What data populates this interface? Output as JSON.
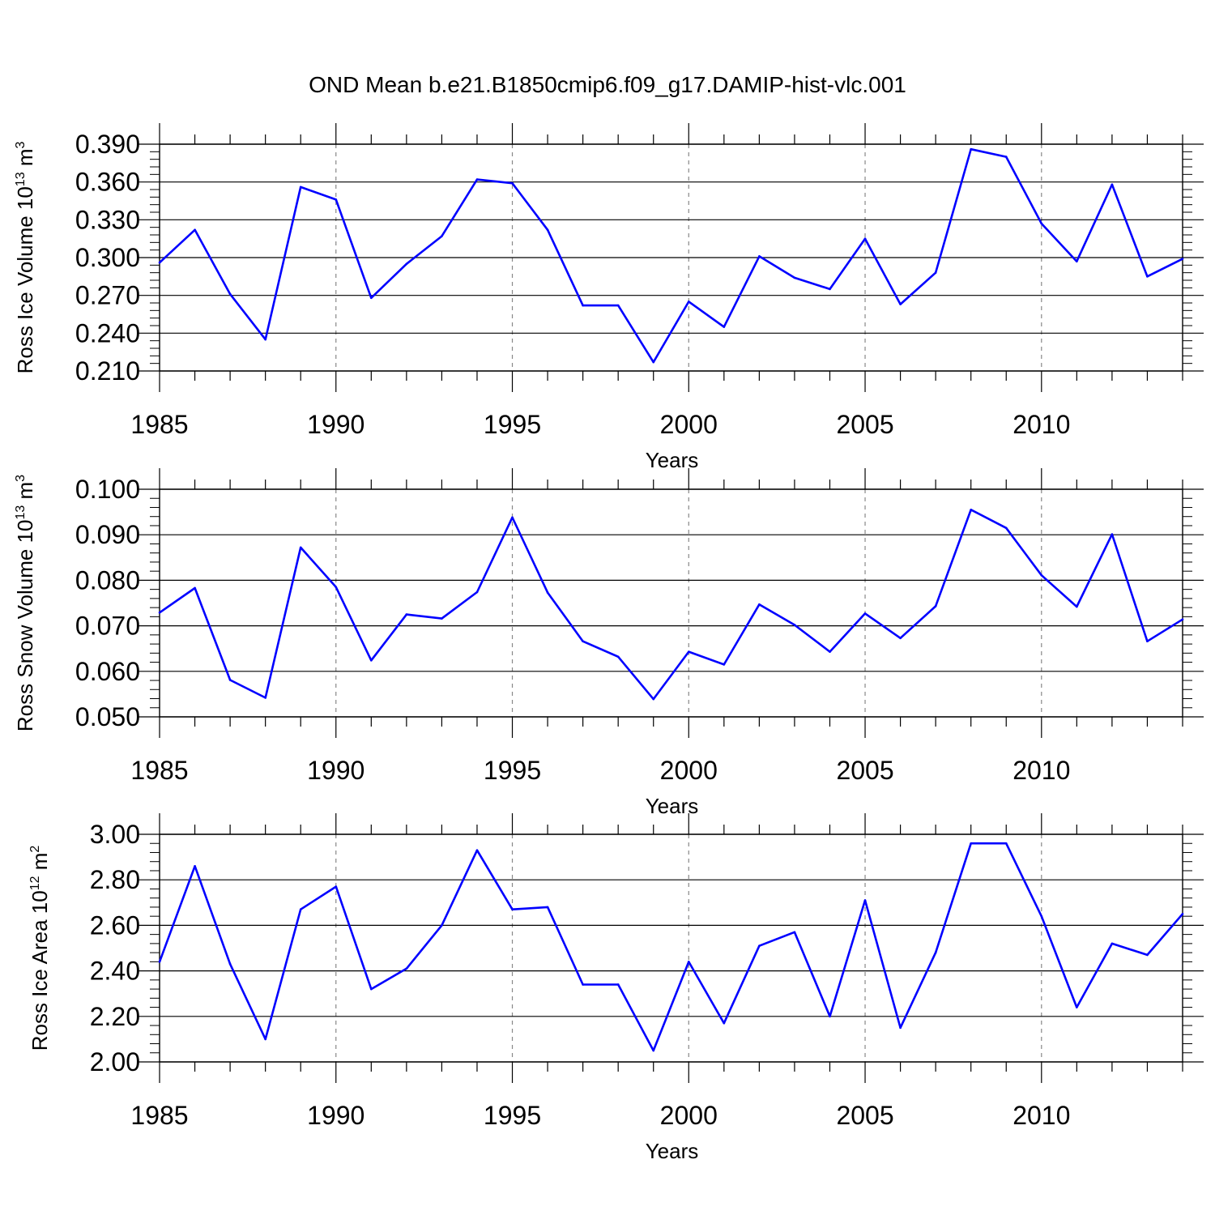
{
  "title": "OND Mean b.e21.B1850cmip6.f09_g17.DAMIP-hist-vlc.001",
  "chart_data": [
    {
      "type": "line",
      "ylabel": {
        "text": "Ross Ice Volume 10",
        "exp": "13",
        "unit": " m",
        "unit_exp": "3"
      },
      "xlabel": "Years",
      "xlim": [
        1985,
        2014
      ],
      "ylim": [
        0.21,
        0.39
      ],
      "yticks": [
        "0.210",
        "0.240",
        "0.270",
        "0.300",
        "0.330",
        "0.360",
        "0.390"
      ],
      "xticks": [
        "1985",
        "1990",
        "1995",
        "2000",
        "2005",
        "2010"
      ],
      "color": "#0000ff",
      "x": [
        1985,
        1986,
        1987,
        1988,
        1989,
        1990,
        1991,
        1992,
        1993,
        1994,
        1995,
        1996,
        1997,
        1998,
        1999,
        2000,
        2001,
        2002,
        2003,
        2004,
        2005,
        2006,
        2007,
        2008,
        2009,
        2010,
        2011,
        2012,
        2013,
        2014
      ],
      "values": [
        0.296,
        0.322,
        0.271,
        0.235,
        0.356,
        0.346,
        0.268,
        0.295,
        0.317,
        0.362,
        0.359,
        0.322,
        0.262,
        0.262,
        0.217,
        0.265,
        0.245,
        0.301,
        0.284,
        0.275,
        0.315,
        0.263,
        0.288,
        0.386,
        0.38,
        0.327,
        0.297,
        0.358,
        0.285,
        0.299
      ]
    },
    {
      "type": "line",
      "ylabel": {
        "text": "Ross Snow Volume 10",
        "exp": "13",
        "unit": " m",
        "unit_exp": "3"
      },
      "xlabel": "Years",
      "xlim": [
        1985,
        2014
      ],
      "ylim": [
        0.05,
        0.1
      ],
      "yticks": [
        "0.050",
        "0.060",
        "0.070",
        "0.080",
        "0.090",
        "0.100"
      ],
      "xticks": [
        "1985",
        "1990",
        "1995",
        "2000",
        "2005",
        "2010"
      ],
      "color": "#0000ff",
      "x": [
        1985,
        1986,
        1987,
        1988,
        1989,
        1990,
        1991,
        1992,
        1993,
        1994,
        1995,
        1996,
        1997,
        1998,
        1999,
        2000,
        2001,
        2002,
        2003,
        2004,
        2005,
        2006,
        2007,
        2008,
        2009,
        2010,
        2011,
        2012,
        2013,
        2014
      ],
      "values": [
        0.0729,
        0.0783,
        0.0581,
        0.0542,
        0.0872,
        0.0785,
        0.0624,
        0.0725,
        0.0716,
        0.0774,
        0.0938,
        0.0773,
        0.0666,
        0.0632,
        0.0539,
        0.0643,
        0.0615,
        0.0747,
        0.0702,
        0.0643,
        0.0727,
        0.0673,
        0.0743,
        0.0955,
        0.0915,
        0.0811,
        0.0742,
        0.0901,
        0.0666,
        0.0714
      ]
    },
    {
      "type": "line",
      "ylabel": {
        "text": "Ross Ice Area 10",
        "exp": "12",
        "unit": " m",
        "unit_exp": "2"
      },
      "xlabel": "Years",
      "xlim": [
        1985,
        2014
      ],
      "ylim": [
        2.0,
        3.0
      ],
      "yticks": [
        "2.00",
        "2.20",
        "2.40",
        "2.60",
        "2.80",
        "3.00"
      ],
      "xticks": [
        "1985",
        "1990",
        "1995",
        "2000",
        "2005",
        "2010"
      ],
      "color": "#0000ff",
      "x": [
        1985,
        1986,
        1987,
        1988,
        1989,
        1990,
        1991,
        1992,
        1993,
        1994,
        1995,
        1996,
        1997,
        1998,
        1999,
        2000,
        2001,
        2002,
        2003,
        2004,
        2005,
        2006,
        2007,
        2008,
        2009,
        2010,
        2011,
        2012,
        2013,
        2014
      ],
      "values": [
        2.44,
        2.86,
        2.43,
        2.1,
        2.67,
        2.77,
        2.32,
        2.41,
        2.6,
        2.93,
        2.67,
        2.68,
        2.34,
        2.34,
        2.05,
        2.44,
        2.17,
        2.51,
        2.57,
        2.2,
        2.71,
        2.15,
        2.48,
        2.96,
        2.96,
        2.64,
        2.24,
        2.52,
        2.47,
        2.65
      ]
    }
  ]
}
